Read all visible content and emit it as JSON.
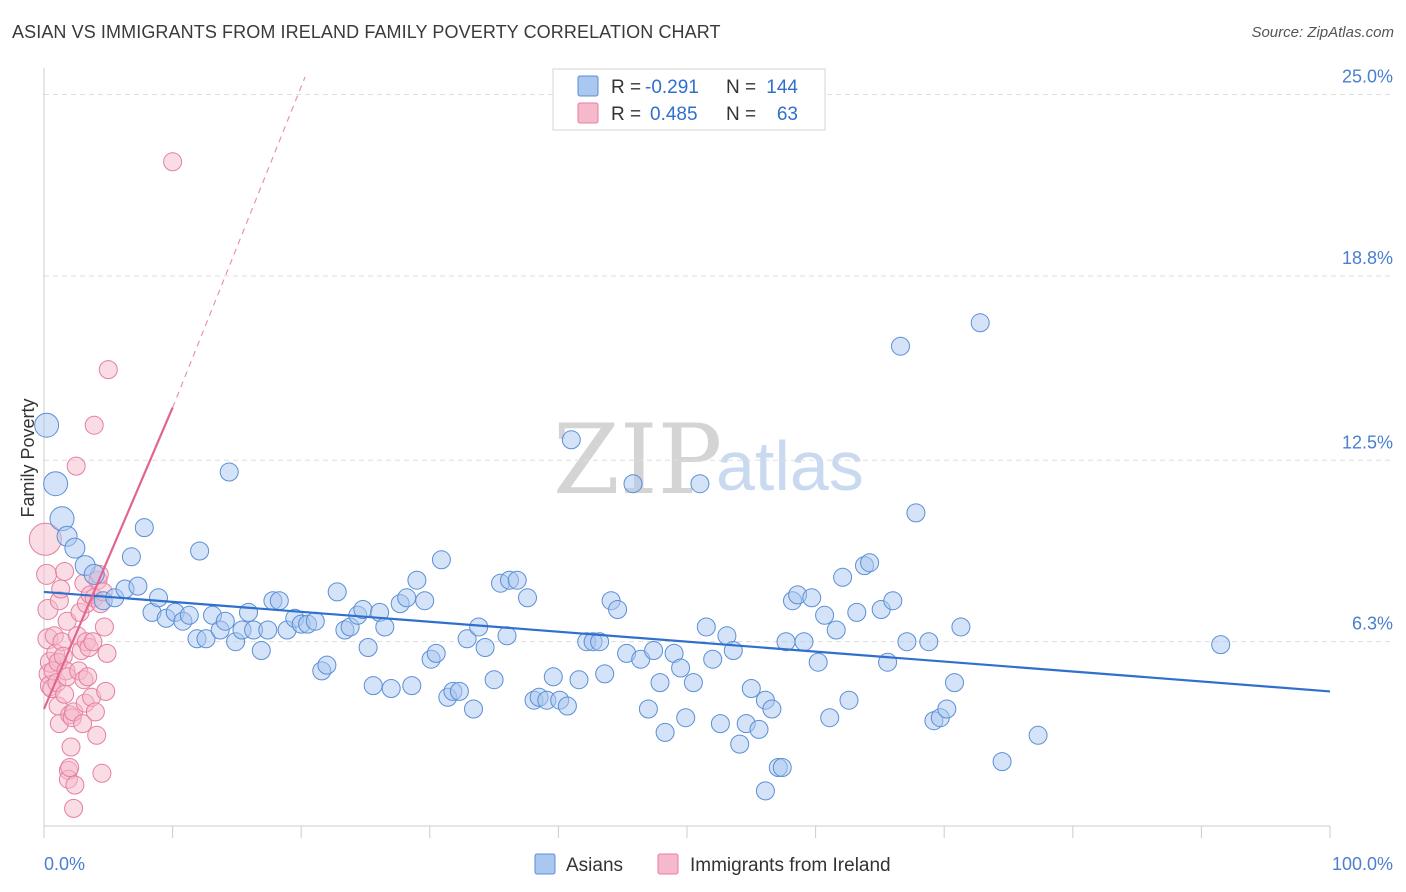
{
  "header": {
    "title": "ASIAN VS IMMIGRANTS FROM IRELAND FAMILY POVERTY CORRELATION CHART",
    "source": "Source: ZipAtlas.com"
  },
  "watermark": {
    "zip": "ZIP",
    "atlas": "atlas"
  },
  "colors": {
    "blue_fill": "#a9c7ef",
    "blue_stroke": "#5b8fd6",
    "blue_line": "#2f6fce",
    "pink_fill": "#f6b9cb",
    "pink_stroke": "#e57fa1",
    "pink_line": "#e0668f",
    "grid": "#dddddd"
  },
  "legend": {
    "rows": [
      {
        "r_label": "R =",
        "r_value": "-0.291",
        "n_label": "N =",
        "n_value": "144"
      },
      {
        "r_label": "R =",
        "r_value": "0.485",
        "n_label": "N =",
        "n_value": "63"
      }
    ]
  },
  "bottom_legend": {
    "asians": "Asians",
    "ireland": "Immigrants from Ireland"
  },
  "chart_data": {
    "type": "scatter",
    "title": "ASIAN VS IMMIGRANTS FROM IRELAND FAMILY POVERTY CORRELATION CHART",
    "ylabel": "Family Poverty",
    "xlabel": "",
    "xlim": [
      0,
      100
    ],
    "ylim": [
      0,
      25.6
    ],
    "x_tick_labels": [
      "0.0%",
      "100.0%"
    ],
    "y_ticks": [
      {
        "value": 6.3,
        "label": "6.3%"
      },
      {
        "value": 12.5,
        "label": "12.5%"
      },
      {
        "value": 18.8,
        "label": "18.8%"
      },
      {
        "value": 25.0,
        "label": "25.0%"
      }
    ],
    "series": [
      {
        "name": "Asians",
        "r": -0.291,
        "n": 144,
        "trend": {
          "x0": 0,
          "y0": 8.0,
          "x1": 100,
          "y1": 4.6
        },
        "points": [
          [
            0.2,
            13.7,
            3
          ],
          [
            0.9,
            11.7,
            3
          ],
          [
            1.4,
            10.5,
            3
          ],
          [
            1.8,
            9.9,
            2
          ],
          [
            2.4,
            9.5,
            2
          ],
          [
            3.2,
            8.9,
            2
          ],
          [
            3.9,
            8.6,
            2
          ],
          [
            4.6,
            7.7,
            1
          ],
          [
            5.5,
            7.8,
            1
          ],
          [
            6.3,
            8.1,
            1
          ],
          [
            6.8,
            9.2,
            1
          ],
          [
            7.3,
            8.2,
            1
          ],
          [
            7.8,
            10.2,
            1
          ],
          [
            8.4,
            7.3,
            1
          ],
          [
            8.9,
            7.8,
            1
          ],
          [
            9.5,
            7.1,
            1
          ],
          [
            10.2,
            7.3,
            1
          ],
          [
            10.8,
            7.0,
            1
          ],
          [
            11.3,
            7.2,
            1
          ],
          [
            11.9,
            6.4,
            1
          ],
          [
            12.1,
            9.4,
            1
          ],
          [
            12.6,
            6.4,
            1
          ],
          [
            13.1,
            7.2,
            1
          ],
          [
            13.7,
            6.7,
            1
          ],
          [
            14.1,
            7.0,
            1
          ],
          [
            14.4,
            12.1,
            1
          ],
          [
            14.9,
            6.3,
            1
          ],
          [
            15.4,
            6.7,
            1
          ],
          [
            15.9,
            7.3,
            1
          ],
          [
            16.3,
            6.7,
            1
          ],
          [
            16.9,
            6.0,
            1
          ],
          [
            17.4,
            6.7,
            1
          ],
          [
            17.8,
            7.7,
            1
          ],
          [
            18.3,
            7.7,
            1
          ],
          [
            18.9,
            6.7,
            1
          ],
          [
            19.5,
            7.1,
            1
          ],
          [
            20.0,
            6.9,
            1
          ],
          [
            20.5,
            6.9,
            1
          ],
          [
            21.1,
            7.0,
            1
          ],
          [
            21.6,
            5.3,
            1
          ],
          [
            22.0,
            5.5,
            1
          ],
          [
            22.8,
            8.0,
            1
          ],
          [
            23.4,
            6.7,
            1
          ],
          [
            23.8,
            6.8,
            1
          ],
          [
            24.4,
            7.2,
            1
          ],
          [
            24.8,
            7.4,
            1
          ],
          [
            25.2,
            6.1,
            1
          ],
          [
            25.6,
            4.8,
            1
          ],
          [
            26.1,
            7.3,
            1
          ],
          [
            26.5,
            6.8,
            1
          ],
          [
            27.0,
            4.7,
            1
          ],
          [
            27.7,
            7.6,
            1
          ],
          [
            28.2,
            7.8,
            1
          ],
          [
            28.6,
            4.8,
            1
          ],
          [
            29.0,
            8.4,
            1
          ],
          [
            29.6,
            7.7,
            1
          ],
          [
            30.1,
            5.7,
            1
          ],
          [
            30.5,
            5.9,
            1
          ],
          [
            30.9,
            9.1,
            1
          ],
          [
            31.4,
            4.4,
            1
          ],
          [
            31.8,
            4.6,
            1
          ],
          [
            32.3,
            4.6,
            1
          ],
          [
            32.9,
            6.4,
            1
          ],
          [
            33.4,
            4.0,
            1
          ],
          [
            33.8,
            6.8,
            1
          ],
          [
            34.3,
            6.1,
            1
          ],
          [
            35.0,
            5.0,
            1
          ],
          [
            35.5,
            8.3,
            1
          ],
          [
            36.2,
            8.4,
            1
          ],
          [
            36.8,
            8.4,
            1
          ],
          [
            36.0,
            6.5,
            1
          ],
          [
            37.6,
            7.8,
            1
          ],
          [
            38.1,
            4.3,
            1
          ],
          [
            38.5,
            4.4,
            1
          ],
          [
            39.1,
            4.3,
            1
          ],
          [
            39.6,
            5.1,
            1
          ],
          [
            40.1,
            4.3,
            1
          ],
          [
            40.7,
            4.1,
            1
          ],
          [
            41.0,
            13.2,
            1
          ],
          [
            41.6,
            5.0,
            1
          ],
          [
            42.2,
            6.3,
            1
          ],
          [
            42.7,
            6.3,
            1
          ],
          [
            43.2,
            6.3,
            1
          ],
          [
            43.6,
            5.2,
            1
          ],
          [
            44.1,
            7.7,
            1
          ],
          [
            44.6,
            7.4,
            1
          ],
          [
            45.3,
            5.9,
            1
          ],
          [
            45.8,
            11.7,
            1
          ],
          [
            46.4,
            5.7,
            1
          ],
          [
            47.0,
            4.0,
            1
          ],
          [
            47.4,
            6.0,
            1
          ],
          [
            47.9,
            4.9,
            1
          ],
          [
            48.3,
            3.2,
            1
          ],
          [
            49.0,
            5.9,
            1
          ],
          [
            49.5,
            5.4,
            1
          ],
          [
            49.9,
            3.7,
            1
          ],
          [
            50.5,
            4.9,
            1
          ],
          [
            51.0,
            11.7,
            1
          ],
          [
            51.5,
            6.8,
            1
          ],
          [
            52.0,
            5.7,
            1
          ],
          [
            52.6,
            3.5,
            1
          ],
          [
            53.1,
            6.5,
            1
          ],
          [
            53.6,
            6.0,
            1
          ],
          [
            54.1,
            2.8,
            1
          ],
          [
            54.6,
            3.5,
            1
          ],
          [
            55.0,
            4.7,
            1
          ],
          [
            55.6,
            3.3,
            1
          ],
          [
            56.1,
            4.3,
            1
          ],
          [
            56.6,
            4.0,
            1
          ],
          [
            57.1,
            2.0,
            1
          ],
          [
            57.7,
            6.3,
            1
          ],
          [
            58.2,
            7.7,
            1
          ],
          [
            58.6,
            7.9,
            1
          ],
          [
            59.1,
            6.3,
            1
          ],
          [
            59.7,
            7.8,
            1
          ],
          [
            60.2,
            5.6,
            1
          ],
          [
            60.7,
            7.2,
            1
          ],
          [
            61.1,
            3.7,
            1
          ],
          [
            61.6,
            6.7,
            1
          ],
          [
            62.1,
            8.5,
            1
          ],
          [
            62.6,
            4.3,
            1
          ],
          [
            63.2,
            7.3,
            1
          ],
          [
            63.8,
            8.9,
            1
          ],
          [
            64.2,
            9.0,
            1
          ],
          [
            65.1,
            7.4,
            1
          ],
          [
            65.6,
            5.6,
            1
          ],
          [
            66.0,
            7.7,
            1
          ],
          [
            66.6,
            16.4,
            1
          ],
          [
            67.1,
            6.3,
            1
          ],
          [
            67.8,
            10.7,
            1
          ],
          [
            68.8,
            6.3,
            1
          ],
          [
            69.2,
            3.6,
            1
          ],
          [
            69.7,
            3.7,
            1
          ],
          [
            70.2,
            4.0,
            1
          ],
          [
            70.8,
            4.9,
            1
          ],
          [
            71.3,
            6.8,
            1
          ],
          [
            72.8,
            17.2,
            1
          ],
          [
            74.5,
            2.2,
            1
          ],
          [
            77.3,
            3.1,
            1
          ],
          [
            91.5,
            6.2,
            1
          ],
          [
            56.1,
            1.2,
            1
          ],
          [
            57.4,
            2.0,
            1
          ]
        ]
      },
      {
        "name": "Immigrants from Ireland",
        "r": 0.485,
        "n": 63,
        "trend": {
          "x0": 0,
          "y0": 4.0,
          "x1": 10.0,
          "y1": 14.3,
          "dash_x1": 20.3,
          "dash_y1": 25.6
        },
        "points": [
          [
            0.1,
            9.8,
            4
          ],
          [
            0.2,
            8.6,
            2
          ],
          [
            0.3,
            7.4,
            2
          ],
          [
            0.3,
            6.4,
            2
          ],
          [
            0.4,
            5.2,
            2
          ],
          [
            0.5,
            4.8,
            2
          ],
          [
            0.5,
            5.6,
            2
          ],
          [
            0.6,
            4.7,
            1
          ],
          [
            0.7,
            5.3,
            1
          ],
          [
            0.8,
            6.5,
            1
          ],
          [
            0.9,
            5.9,
            1
          ],
          [
            1.0,
            4.9,
            1
          ],
          [
            1.1,
            5.6,
            1
          ],
          [
            1.1,
            4.1,
            1
          ],
          [
            1.2,
            3.5,
            1
          ],
          [
            1.2,
            7.7,
            1
          ],
          [
            1.3,
            8.1,
            1
          ],
          [
            1.4,
            6.3,
            1
          ],
          [
            1.5,
            5.8,
            1
          ],
          [
            1.6,
            4.5,
            1
          ],
          [
            1.6,
            8.7,
            1
          ],
          [
            1.7,
            5.3,
            1
          ],
          [
            1.8,
            5.1,
            1
          ],
          [
            1.8,
            7.0,
            1
          ],
          [
            1.9,
            1.9,
            1
          ],
          [
            1.9,
            1.6,
            1
          ],
          [
            2.0,
            2.0,
            1
          ],
          [
            2.0,
            3.8,
            1
          ],
          [
            2.1,
            2.7,
            1
          ],
          [
            2.2,
            3.7,
            1
          ],
          [
            2.3,
            0.6,
            1
          ],
          [
            2.3,
            3.9,
            1
          ],
          [
            2.4,
            1.4,
            1
          ],
          [
            2.5,
            12.3,
            1
          ],
          [
            2.6,
            6.5,
            1
          ],
          [
            2.7,
            5.3,
            1
          ],
          [
            2.8,
            7.3,
            1
          ],
          [
            2.9,
            6.0,
            1
          ],
          [
            3.0,
            3.5,
            1
          ],
          [
            3.1,
            8.3,
            1
          ],
          [
            3.1,
            5.0,
            1
          ],
          [
            3.2,
            4.2,
            1
          ],
          [
            3.3,
            6.3,
            1
          ],
          [
            3.3,
            7.6,
            1
          ],
          [
            3.4,
            5.1,
            1
          ],
          [
            3.5,
            6.1,
            1
          ],
          [
            3.6,
            7.9,
            1
          ],
          [
            3.7,
            4.4,
            1
          ],
          [
            3.8,
            6.3,
            1
          ],
          [
            3.9,
            7.8,
            1
          ],
          [
            3.9,
            13.7,
            1
          ],
          [
            4.0,
            3.9,
            1
          ],
          [
            4.1,
            3.1,
            1
          ],
          [
            4.2,
            8.4,
            1
          ],
          [
            4.3,
            8.6,
            1
          ],
          [
            4.4,
            7.6,
            1
          ],
          [
            4.5,
            1.8,
            1
          ],
          [
            4.6,
            8.0,
            1
          ],
          [
            4.7,
            6.8,
            1
          ],
          [
            4.8,
            4.6,
            1
          ],
          [
            4.9,
            5.9,
            1
          ],
          [
            5.0,
            15.6,
            1
          ],
          [
            10.0,
            22.7,
            1
          ]
        ]
      }
    ]
  }
}
